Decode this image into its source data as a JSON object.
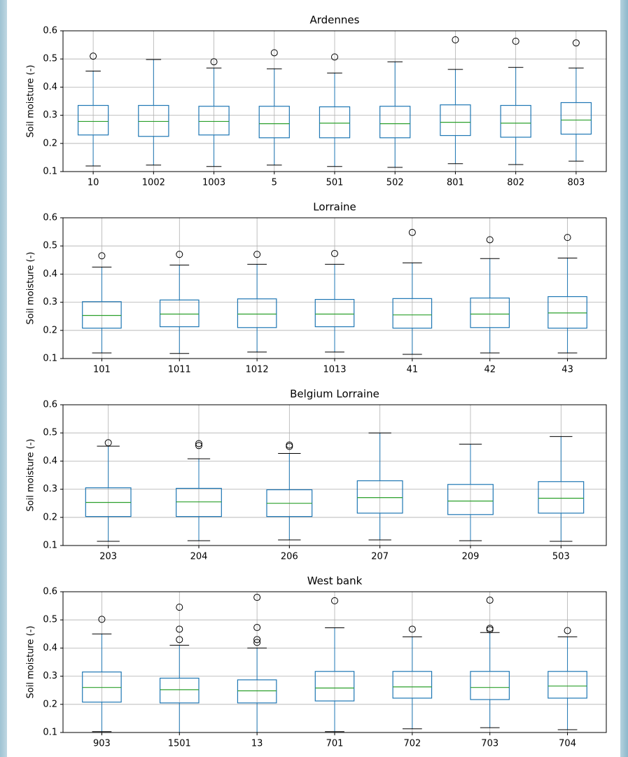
{
  "chart_data": [
    {
      "type": "box",
      "title": "Ardennes",
      "y_label": "Soil moisture (-)",
      "ylim": [
        0.1,
        0.6
      ],
      "yticks": [
        0.1,
        0.2,
        0.3,
        0.4,
        0.5,
        0.6
      ],
      "grid": true,
      "box_color": "#1f77b4",
      "median_color": "#2ca02c",
      "cap_color": "#000000",
      "flier_color": "#000000",
      "categories": [
        "10",
        "1002",
        "1003",
        "5",
        "501",
        "502",
        "801",
        "802",
        "803"
      ],
      "boxes": [
        {
          "whislo": 0.12,
          "q1": 0.23,
          "med": 0.278,
          "q3": 0.335,
          "whishi": 0.457,
          "fliers": [
            0.51
          ]
        },
        {
          "whislo": 0.123,
          "q1": 0.225,
          "med": 0.278,
          "q3": 0.335,
          "whishi": 0.498,
          "fliers": []
        },
        {
          "whislo": 0.118,
          "q1": 0.23,
          "med": 0.278,
          "q3": 0.332,
          "whishi": 0.468,
          "fliers": [
            0.49
          ]
        },
        {
          "whislo": 0.123,
          "q1": 0.22,
          "med": 0.27,
          "q3": 0.332,
          "whishi": 0.465,
          "fliers": [
            0.522
          ]
        },
        {
          "whislo": 0.118,
          "q1": 0.22,
          "med": 0.272,
          "q3": 0.33,
          "whishi": 0.45,
          "fliers": [
            0.507
          ]
        },
        {
          "whislo": 0.115,
          "q1": 0.22,
          "med": 0.27,
          "q3": 0.332,
          "whishi": 0.49,
          "fliers": []
        },
        {
          "whislo": 0.128,
          "q1": 0.228,
          "med": 0.275,
          "q3": 0.337,
          "whishi": 0.463,
          "fliers": [
            0.568
          ]
        },
        {
          "whislo": 0.125,
          "q1": 0.222,
          "med": 0.272,
          "q3": 0.335,
          "whishi": 0.47,
          "fliers": [
            0.563
          ]
        },
        {
          "whislo": 0.137,
          "q1": 0.233,
          "med": 0.283,
          "q3": 0.345,
          "whishi": 0.468,
          "fliers": [
            0.557
          ]
        }
      ]
    },
    {
      "type": "box",
      "title": "Lorraine",
      "y_label": "Soil moisture (-)",
      "ylim": [
        0.1,
        0.6
      ],
      "yticks": [
        0.1,
        0.2,
        0.3,
        0.4,
        0.5,
        0.6
      ],
      "grid": true,
      "box_color": "#1f77b4",
      "median_color": "#2ca02c",
      "cap_color": "#000000",
      "flier_color": "#000000",
      "categories": [
        "101",
        "1011",
        "1012",
        "1013",
        "41",
        "42",
        "43"
      ],
      "boxes": [
        {
          "whislo": 0.12,
          "q1": 0.208,
          "med": 0.253,
          "q3": 0.302,
          "whishi": 0.425,
          "fliers": [
            0.465
          ]
        },
        {
          "whislo": 0.118,
          "q1": 0.213,
          "med": 0.258,
          "q3": 0.308,
          "whishi": 0.432,
          "fliers": [
            0.47
          ]
        },
        {
          "whislo": 0.123,
          "q1": 0.21,
          "med": 0.258,
          "q3": 0.312,
          "whishi": 0.435,
          "fliers": [
            0.47
          ]
        },
        {
          "whislo": 0.123,
          "q1": 0.213,
          "med": 0.258,
          "q3": 0.31,
          "whishi": 0.435,
          "fliers": [
            0.473
          ]
        },
        {
          "whislo": 0.115,
          "q1": 0.208,
          "med": 0.255,
          "q3": 0.313,
          "whishi": 0.44,
          "fliers": [
            0.548
          ]
        },
        {
          "whislo": 0.12,
          "q1": 0.21,
          "med": 0.258,
          "q3": 0.315,
          "whishi": 0.455,
          "fliers": [
            0.522
          ]
        },
        {
          "whislo": 0.12,
          "q1": 0.208,
          "med": 0.262,
          "q3": 0.32,
          "whishi": 0.457,
          "fliers": [
            0.53
          ]
        }
      ]
    },
    {
      "type": "box",
      "title": "Belgium Lorraine",
      "y_label": "Soil moisture (-)",
      "ylim": [
        0.1,
        0.6
      ],
      "yticks": [
        0.1,
        0.2,
        0.3,
        0.4,
        0.5,
        0.6
      ],
      "grid": true,
      "box_color": "#1f77b4",
      "median_color": "#2ca02c",
      "cap_color": "#000000",
      "flier_color": "#000000",
      "categories": [
        "203",
        "204",
        "206",
        "207",
        "209",
        "503"
      ],
      "boxes": [
        {
          "whislo": 0.115,
          "q1": 0.203,
          "med": 0.253,
          "q3": 0.305,
          "whishi": 0.453,
          "fliers": [
            0.465
          ]
        },
        {
          "whislo": 0.117,
          "q1": 0.203,
          "med": 0.255,
          "q3": 0.303,
          "whishi": 0.408,
          "fliers": [
            0.455,
            0.462
          ]
        },
        {
          "whislo": 0.12,
          "q1": 0.203,
          "med": 0.25,
          "q3": 0.298,
          "whishi": 0.427,
          "fliers": [
            0.452,
            0.457
          ]
        },
        {
          "whislo": 0.12,
          "q1": 0.215,
          "med": 0.27,
          "q3": 0.33,
          "whishi": 0.5,
          "fliers": []
        },
        {
          "whislo": 0.117,
          "q1": 0.21,
          "med": 0.258,
          "q3": 0.317,
          "whishi": 0.46,
          "fliers": []
        },
        {
          "whislo": 0.115,
          "q1": 0.215,
          "med": 0.268,
          "q3": 0.327,
          "whishi": 0.487,
          "fliers": []
        }
      ]
    },
    {
      "type": "box",
      "title": "West bank",
      "y_label": "Soil moisture (-)",
      "ylim": [
        0.1,
        0.6
      ],
      "yticks": [
        0.1,
        0.2,
        0.3,
        0.4,
        0.5,
        0.6
      ],
      "grid": true,
      "box_color": "#1f77b4",
      "median_color": "#2ca02c",
      "cap_color": "#000000",
      "flier_color": "#000000",
      "categories": [
        "903",
        "1501",
        "13",
        "701",
        "702",
        "703",
        "704"
      ],
      "boxes": [
        {
          "whislo": 0.103,
          "q1": 0.208,
          "med": 0.26,
          "q3": 0.315,
          "whishi": 0.45,
          "fliers": [
            0.502
          ]
        },
        {
          "whislo": 0.1,
          "q1": 0.205,
          "med": 0.252,
          "q3": 0.293,
          "whishi": 0.41,
          "fliers": [
            0.43,
            0.467,
            0.545
          ]
        },
        {
          "whislo": 0.1,
          "q1": 0.205,
          "med": 0.248,
          "q3": 0.287,
          "whishi": 0.4,
          "fliers": [
            0.42,
            0.43,
            0.473,
            0.58
          ]
        },
        {
          "whislo": 0.103,
          "q1": 0.212,
          "med": 0.258,
          "q3": 0.317,
          "whishi": 0.472,
          "fliers": [
            0.568
          ]
        },
        {
          "whislo": 0.113,
          "q1": 0.222,
          "med": 0.262,
          "q3": 0.317,
          "whishi": 0.44,
          "fliers": [
            0.467
          ]
        },
        {
          "whislo": 0.117,
          "q1": 0.217,
          "med": 0.26,
          "q3": 0.317,
          "whishi": 0.455,
          "fliers": [
            0.465,
            0.47,
            0.57
          ]
        },
        {
          "whislo": 0.11,
          "q1": 0.222,
          "med": 0.265,
          "q3": 0.317,
          "whishi": 0.44,
          "fliers": [
            0.462
          ]
        }
      ]
    }
  ]
}
